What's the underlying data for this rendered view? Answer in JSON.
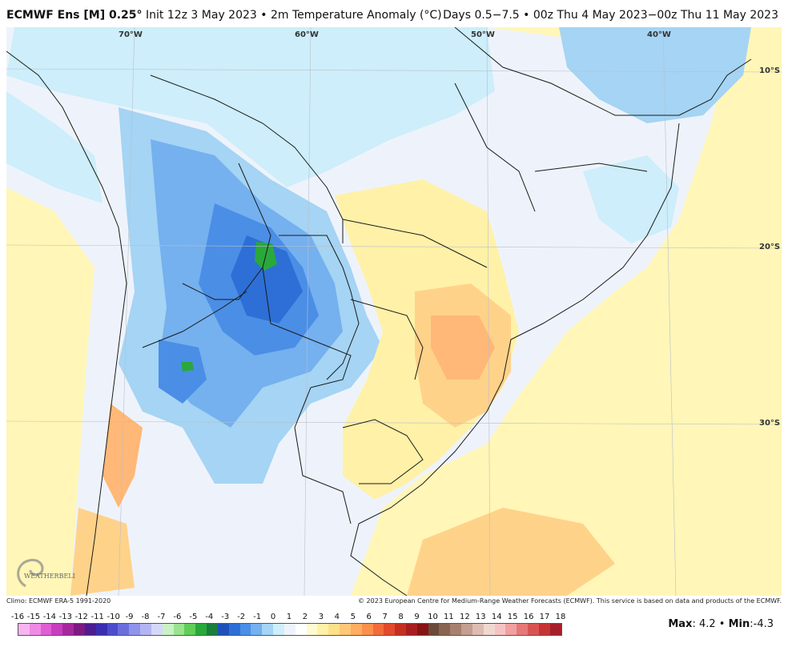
{
  "header": {
    "model": "ECMWF Ens [M] 0.25",
    "model_degree": "°",
    "init": " Init 12z 3 May 2023 • 2m Temperature Anomaly (°C)",
    "period": "Days 0.5−7.5 • 00z Thu 4 May 2023−00z Thu 11 May 2023"
  },
  "map": {
    "lon_labels": [
      "70°W",
      "60°W",
      "50°W",
      "40°W"
    ],
    "lat_labels": [
      "10°S",
      "20°S",
      "30°S"
    ]
  },
  "credits": {
    "climo": "Climo: ECMWF ERA-5 1991-2020",
    "copyright": "© 2023 European Centre for Medium-Range Weather Forecasts (ECMWF). This service is based on data and products of the ECMWF."
  },
  "colorbar": {
    "ticks": [
      "-16",
      "-15",
      "-14",
      "-13",
      "-12",
      "-11",
      "-10",
      "-9",
      "-8",
      "-7",
      "-6",
      "-5",
      "-4",
      "-3",
      "-2",
      "-1",
      "0",
      "1",
      "2",
      "3",
      "4",
      "5",
      "6",
      "7",
      "8",
      "9",
      "10",
      "11",
      "12",
      "13",
      "14",
      "15",
      "16",
      "17",
      "18"
    ],
    "colors": [
      "#f7b4f0",
      "#ee8ae4",
      "#e05fd4",
      "#c63fbe",
      "#a5289f",
      "#7d1a83",
      "#4c1d8f",
      "#3a2fb0",
      "#4b4ecb",
      "#6b6fdc",
      "#8f93ea",
      "#b3b5f2",
      "#d6d7f8",
      "#c9f2c4",
      "#9ae38f",
      "#5fcf59",
      "#2aa83b",
      "#1a7e3d",
      "#1f52b8",
      "#2d6fd6",
      "#4a8ee6",
      "#75b0ef",
      "#a5d4f4",
      "#cdeefa",
      "#eef3fb",
      "#ffffff",
      "#fffbd0",
      "#fff1a8",
      "#ffe08a",
      "#ffc777",
      "#ffad62",
      "#fb8f4c",
      "#f26c3b",
      "#e24a2b",
      "#c4301f",
      "#a81e1e",
      "#871414",
      "#6b4a3a",
      "#8a6452",
      "#a88070",
      "#c49e90",
      "#ddbdb2",
      "#f0d8d0",
      "#f6c3c3",
      "#f0a0a0",
      "#e67878",
      "#d85454",
      "#c43434",
      "#a51f2a"
    ],
    "max_label": "Max",
    "max_value": "4.2",
    "separator": " • ",
    "min_label": "Min",
    "min_value": "-4.3"
  },
  "branding": {
    "logo_text": "WEATHERBELL"
  }
}
